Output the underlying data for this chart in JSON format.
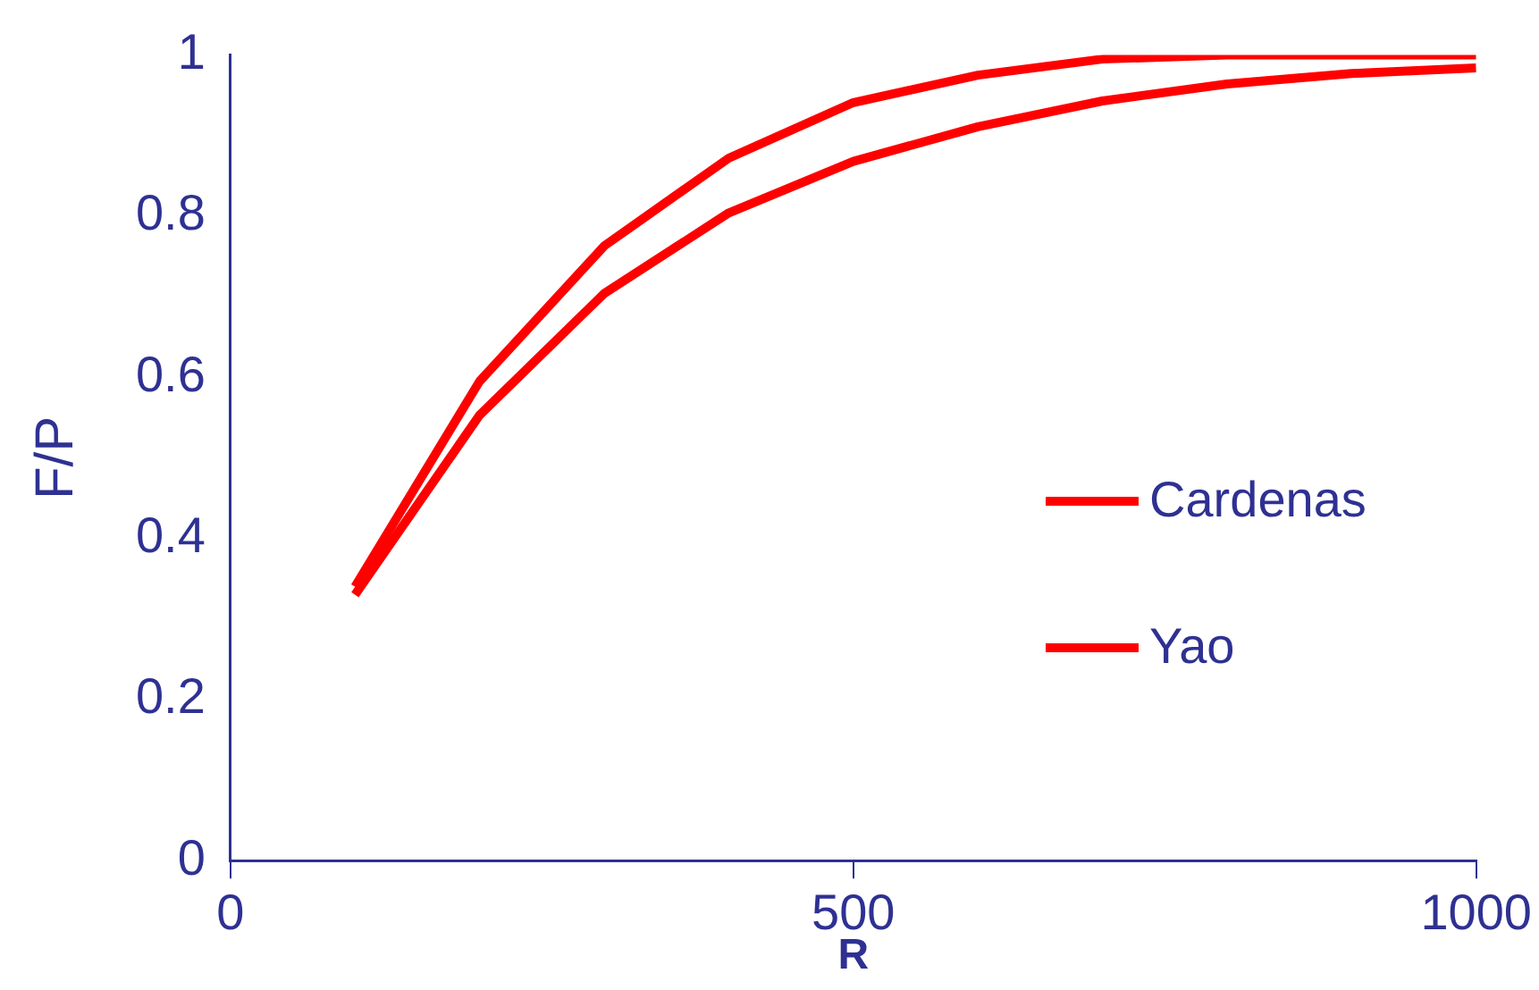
{
  "chart_data": {
    "type": "line",
    "xlabel": "R",
    "ylabel": "F/P",
    "x": [
      100,
      200,
      300,
      400,
      500,
      600,
      700,
      800,
      900,
      1000
    ],
    "series": [
      {
        "name": "Cardenas",
        "color": "#ff0000",
        "values": [
          0.34,
          0.595,
          0.763,
          0.872,
          0.941,
          0.975,
          0.995,
          1.0,
          1.0,
          1.0
        ]
      },
      {
        "name": "Yao",
        "color": "#ff0000",
        "values": [
          0.33,
          0.553,
          0.704,
          0.804,
          0.868,
          0.911,
          0.943,
          0.964,
          0.977,
          0.984
        ]
      }
    ],
    "xlim": [
      0,
      1000
    ],
    "xticks": [
      0,
      500,
      1000
    ],
    "ylim": [
      0,
      1
    ],
    "yticks": [
      0,
      0.2,
      0.4,
      0.6,
      0.8,
      1
    ],
    "grid": false,
    "legend": "right",
    "marker": "none",
    "line_style": "solid"
  }
}
